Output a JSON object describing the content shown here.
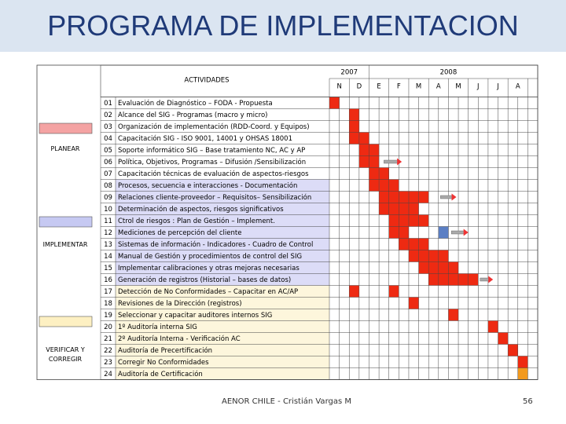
{
  "header": {
    "title": "PROGRAMA DE IMPLEMENTACION"
  },
  "table": {
    "column_header": "ACTIVIDADES",
    "years": [
      "2007",
      "2008"
    ],
    "months": [
      "N",
      "D",
      "E",
      "F",
      "M",
      "A",
      "M",
      "J",
      "J",
      "A"
    ],
    "rows": [
      {
        "number": "01",
        "activity": "Evaluación de Diagnóstico – FODA - Propuesta"
      },
      {
        "number": "02",
        "activity": "Alcance del SIG - Programas (macro y micro)"
      },
      {
        "number": "03",
        "activity": "Organización de implementación (RDD-Coord. y Equipos)"
      },
      {
        "number": "04",
        "activity": "Capacitación SIG - ISO 9001, 14001 y OHSAS 18001"
      },
      {
        "number": "05",
        "activity": "Soporte informático SIG – Base tratamiento NC, AC y AP"
      },
      {
        "number": "06",
        "activity": "Política, Objetivos, Programas – Difusión /Sensibilización"
      },
      {
        "number": "07",
        "activity": "Capacitación técnicas de evaluación de aspectos-riesgos"
      },
      {
        "number": "08",
        "activity": "Procesos, secuencia e interacciones - Documentación"
      },
      {
        "number": "09",
        "activity": "Relaciones cliente-proveedor – Requisitos– Sensibilización"
      },
      {
        "number": "10",
        "activity": "Determinación de aspectos, riesgos significativos"
      },
      {
        "number": "11",
        "activity": "Ctrol de riesgos : Plan de Gestión – Implement."
      },
      {
        "number": "12",
        "activity": "Mediciones de percepción del cliente"
      },
      {
        "number": "13",
        "activity": "Sistemas de información - Indicadores - Cuadro de Control"
      },
      {
        "number": "14",
        "activity": "Manual de Gestión y procedimientos de control del SIG"
      },
      {
        "number": "15",
        "activity": "Implementar calibraciones y otras mejoras necesarias"
      },
      {
        "number": "16",
        "activity": "Generación de registros (Historial – bases de datos)"
      },
      {
        "number": "17",
        "activity": "Detección de No Conformidades – Capacitar en AC/AP"
      },
      {
        "number": "18",
        "activity": "Revisiones de la Dirección (registros)"
      },
      {
        "number": "19",
        "activity": "Seleccionar y capacitar auditores internos SIG"
      },
      {
        "number": "20",
        "activity": "1º Auditoría interna SIG"
      },
      {
        "number": "21",
        "activity": "2º Auditoría Interna - Verificación AC"
      },
      {
        "number": "22",
        "activity": "Auditoría de Precertificación"
      },
      {
        "number": "23",
        "activity": "Corregir No Conformidades"
      },
      {
        "number": "24",
        "activity": "Auditoría de Certificación"
      }
    ]
  },
  "phases": [
    {
      "label": "PLANEAR"
    },
    {
      "label": "IMPLEMENTAR"
    },
    {
      "label": "VERIFICAR Y CORREGIR"
    }
  ],
  "footer": {
    "author": "AENOR CHILE - Cristián Vargas M",
    "page": "56"
  }
}
